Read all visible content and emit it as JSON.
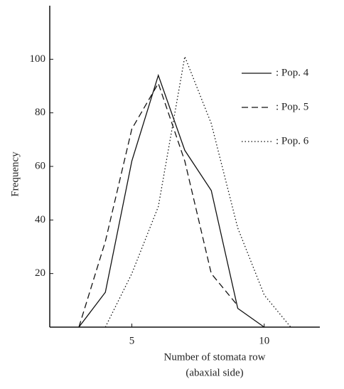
{
  "chart_data": {
    "type": "line",
    "xlabel": "Number of stomata row",
    "xlabel2": "(abaxial side)",
    "ylabel": "Frequency",
    "x": [
      3,
      4,
      5,
      6,
      7,
      8,
      9,
      10,
      11
    ],
    "series": [
      {
        "name": ": Pop. 4",
        "color": "#111111",
        "dash": "solid",
        "values": [
          0,
          13,
          62,
          94,
          66,
          51,
          7,
          0,
          null
        ]
      },
      {
        "name": ": Pop. 5",
        "color": "#111111",
        "dash": "dashed",
        "values": [
          0,
          32,
          74,
          91,
          62,
          20,
          8,
          null,
          null
        ]
      },
      {
        "name": ": Pop. 6",
        "color": "#111111",
        "dash": "dotted",
        "values": [
          null,
          0,
          20,
          45,
          101,
          76,
          37,
          12,
          0
        ]
      }
    ],
    "xlim": [
      1.9,
      12.1
    ],
    "xticks": [
      5,
      10
    ],
    "ylim": [
      0,
      120
    ],
    "yticks": [
      20,
      40,
      60,
      80,
      100
    ],
    "grid": false,
    "legend": "upper right"
  }
}
